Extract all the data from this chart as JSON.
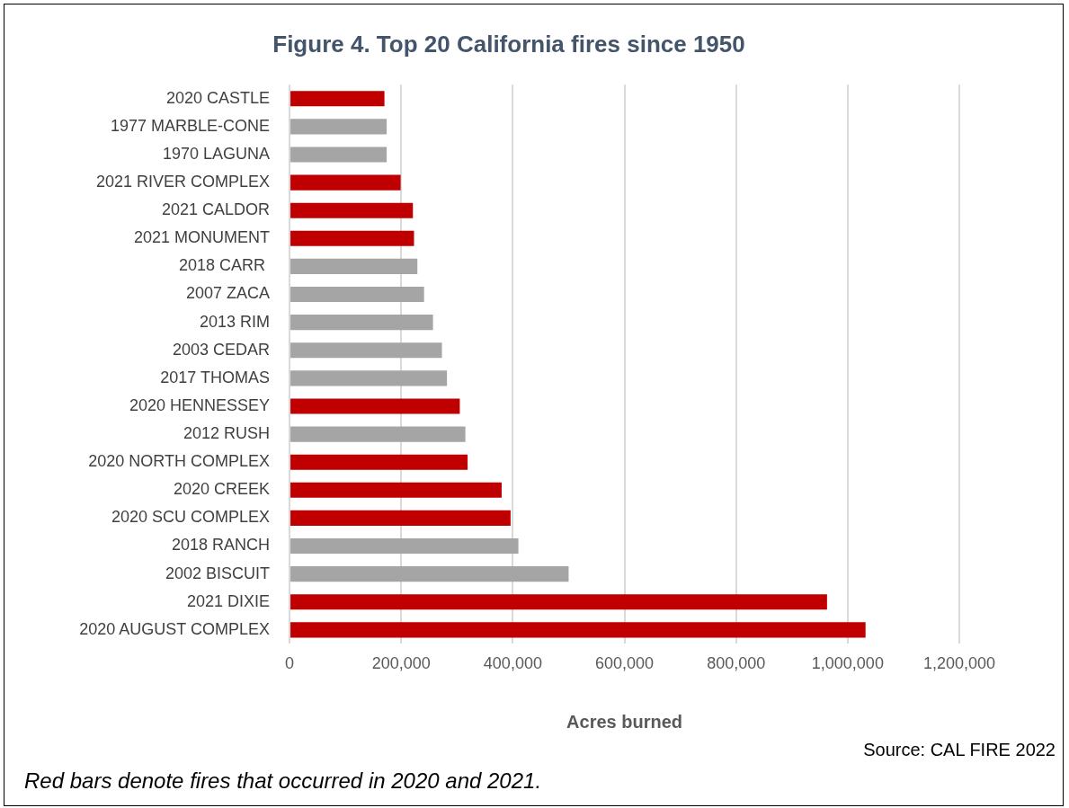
{
  "chart_data": {
    "type": "bar",
    "orientation": "horizontal",
    "title": "Figure 4. Top 20 California fires since 1950",
    "xlabel": "Acres burned",
    "categories": [
      "2020 CASTLE",
      "1977 MARBLE-CONE",
      "1970 LAGUNA",
      "2021 RIVER COMPLEX",
      "2021 CALDOR",
      "2021 MONUMENT",
      "2018 CARR ",
      "2007 ZACA",
      "2013 RIM",
      "2003 CEDAR",
      "2017 THOMAS",
      "2020 HENNESSEY",
      "2012 RUSH",
      "2020 NORTH COMPLEX",
      "2020 CREEK",
      "2020 SCU COMPLEX",
      "2018 RANCH",
      "2002 BISCUIT",
      "2021 DIXIE",
      "2020 AUGUST COMPLEX"
    ],
    "values": [
      170000,
      174000,
      174000,
      199000,
      221000,
      223000,
      229000,
      241000,
      257000,
      273000,
      282000,
      305000,
      315000,
      319000,
      380000,
      396000,
      410000,
      500000,
      963000,
      1032000
    ],
    "colors": [
      "#c00000",
      "#a5a5a5",
      "#a5a5a5",
      "#c00000",
      "#c00000",
      "#c00000",
      "#a5a5a5",
      "#a5a5a5",
      "#a5a5a5",
      "#a5a5a5",
      "#a5a5a5",
      "#c00000",
      "#a5a5a5",
      "#c00000",
      "#c00000",
      "#c00000",
      "#a5a5a5",
      "#a5a5a5",
      "#c00000",
      "#c00000"
    ],
    "xlim": [
      0,
      1200000
    ],
    "xticks": [
      {
        "value": 0,
        "label": "0"
      },
      {
        "value": 200000,
        "label": "200,000"
      },
      {
        "value": 400000,
        "label": "400,000"
      },
      {
        "value": 600000,
        "label": "600,000"
      },
      {
        "value": 800000,
        "label": "800,000"
      },
      {
        "value": 1000000,
        "label": "1,000,000"
      },
      {
        "value": 1200000,
        "label": "1,200,000"
      }
    ],
    "grid": "x",
    "legend": false,
    "annotations": [
      "Source: CAL FIRE 2022",
      "Red bars denote fires that occurred in 2020 and 2021."
    ]
  }
}
